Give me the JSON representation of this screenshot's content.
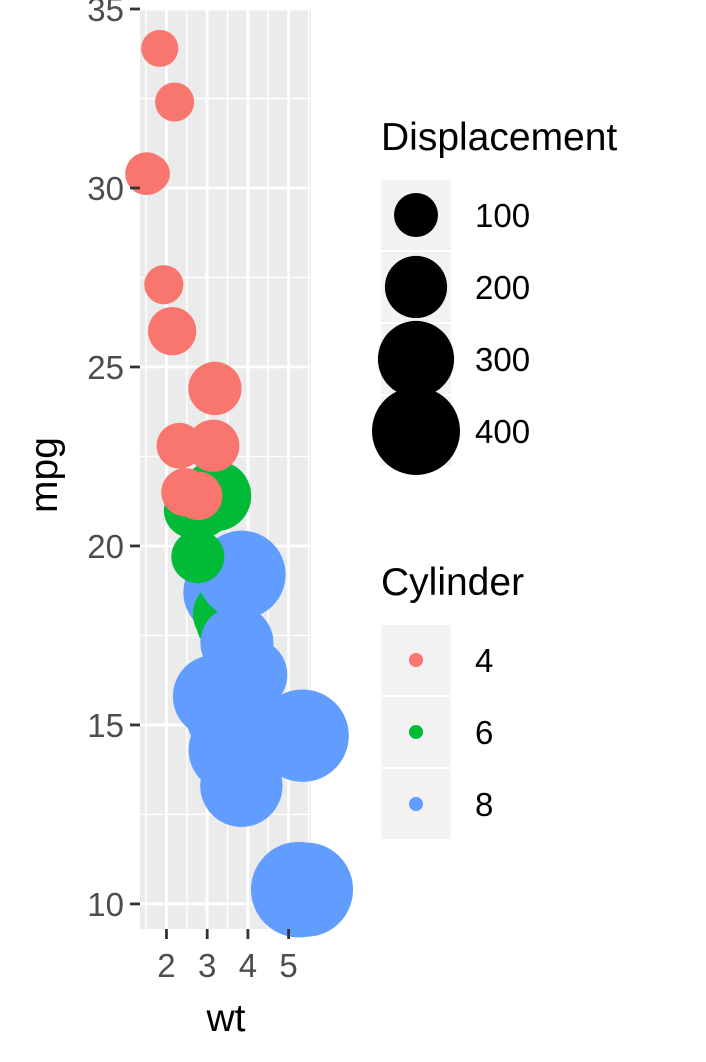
{
  "chart_data": {
    "type": "scatter",
    "xlabel": "wt",
    "ylabel": "mpg",
    "xlim": [
      1.35,
      5.55
    ],
    "ylim": [
      9.3,
      35.0
    ],
    "x_ticks": [
      2,
      3,
      4,
      5
    ],
    "y_ticks": [
      10,
      15,
      20,
      25,
      30,
      35
    ],
    "grid": true,
    "colors": {
      "4": "#F8766D",
      "6": "#00BA38",
      "8": "#619CFF",
      "panel": "#EBEBEB",
      "legend_key": "#F2F2F2"
    },
    "points": [
      {
        "wt": 2.62,
        "mpg": 21.0,
        "disp": 160.0,
        "cyl": "6"
      },
      {
        "wt": 2.875,
        "mpg": 21.0,
        "disp": 160.0,
        "cyl": "6"
      },
      {
        "wt": 2.32,
        "mpg": 22.8,
        "disp": 108.0,
        "cyl": "4"
      },
      {
        "wt": 3.215,
        "mpg": 21.4,
        "disp": 258.0,
        "cyl": "6"
      },
      {
        "wt": 3.44,
        "mpg": 18.7,
        "disp": 360.0,
        "cyl": "8"
      },
      {
        "wt": 3.46,
        "mpg": 18.1,
        "disp": 225.0,
        "cyl": "6"
      },
      {
        "wt": 3.57,
        "mpg": 14.3,
        "disp": 360.0,
        "cyl": "8"
      },
      {
        "wt": 3.19,
        "mpg": 24.4,
        "disp": 146.7,
        "cyl": "4"
      },
      {
        "wt": 3.15,
        "mpg": 22.8,
        "disp": 140.8,
        "cyl": "4"
      },
      {
        "wt": 3.44,
        "mpg": 19.2,
        "disp": 167.6,
        "cyl": "6"
      },
      {
        "wt": 3.44,
        "mpg": 17.8,
        "disp": 167.6,
        "cyl": "6"
      },
      {
        "wt": 4.07,
        "mpg": 16.4,
        "disp": 275.8,
        "cyl": "8"
      },
      {
        "wt": 3.73,
        "mpg": 17.3,
        "disp": 275.8,
        "cyl": "8"
      },
      {
        "wt": 3.78,
        "mpg": 15.2,
        "disp": 275.8,
        "cyl": "8"
      },
      {
        "wt": 5.25,
        "mpg": 10.4,
        "disp": 472.0,
        "cyl": "8"
      },
      {
        "wt": 5.424,
        "mpg": 10.4,
        "disp": 460.0,
        "cyl": "8"
      },
      {
        "wt": 5.345,
        "mpg": 14.7,
        "disp": 440.0,
        "cyl": "8"
      },
      {
        "wt": 2.2,
        "mpg": 32.4,
        "disp": 78.7,
        "cyl": "4"
      },
      {
        "wt": 1.615,
        "mpg": 30.4,
        "disp": 75.7,
        "cyl": "4"
      },
      {
        "wt": 1.835,
        "mpg": 33.9,
        "disp": 71.1,
        "cyl": "4"
      },
      {
        "wt": 2.465,
        "mpg": 21.5,
        "disp": 120.1,
        "cyl": "4"
      },
      {
        "wt": 3.52,
        "mpg": 15.5,
        "disp": 318.0,
        "cyl": "8"
      },
      {
        "wt": 3.435,
        "mpg": 15.2,
        "disp": 304.0,
        "cyl": "8"
      },
      {
        "wt": 3.84,
        "mpg": 13.3,
        "disp": 350.0,
        "cyl": "8"
      },
      {
        "wt": 3.845,
        "mpg": 19.2,
        "disp": 400.0,
        "cyl": "8"
      },
      {
        "wt": 1.935,
        "mpg": 27.3,
        "disp": 79.0,
        "cyl": "4"
      },
      {
        "wt": 2.14,
        "mpg": 26.0,
        "disp": 120.3,
        "cyl": "4"
      },
      {
        "wt": 1.513,
        "mpg": 30.4,
        "disp": 95.1,
        "cyl": "4"
      },
      {
        "wt": 3.17,
        "mpg": 15.8,
        "disp": 351.0,
        "cyl": "8"
      },
      {
        "wt": 2.77,
        "mpg": 19.7,
        "disp": 145.0,
        "cyl": "6"
      },
      {
        "wt": 3.57,
        "mpg": 15.0,
        "disp": 301.0,
        "cyl": "8"
      },
      {
        "wt": 2.78,
        "mpg": 21.4,
        "disp": 121.0,
        "cyl": "4"
      }
    ],
    "legend_size": {
      "title": "Displacement",
      "entries": [
        {
          "label": "100",
          "disp": 100
        },
        {
          "label": "200",
          "disp": 200
        },
        {
          "label": "300",
          "disp": 300
        },
        {
          "label": "400",
          "disp": 400
        }
      ]
    },
    "legend_color": {
      "title": "Cylinder",
      "entries": [
        {
          "label": "4",
          "cyl": "4"
        },
        {
          "label": "6",
          "cyl": "6"
        },
        {
          "label": "8",
          "cyl": "8"
        }
      ]
    },
    "legend_placement": "right"
  }
}
